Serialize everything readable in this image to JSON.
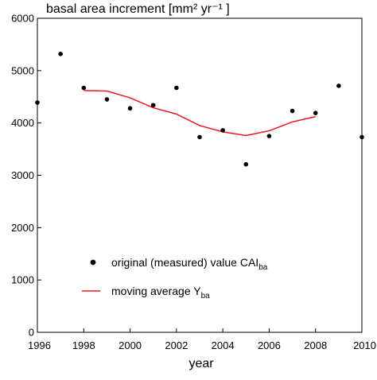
{
  "chart_data": {
    "type": "scatter",
    "title": "basal area increment [mm² yr⁻¹ ]",
    "xlabel": "year",
    "ylabel": "",
    "xlim": [
      1996,
      2010
    ],
    "ylim": [
      0,
      6000
    ],
    "xticks": [
      1996,
      1998,
      2000,
      2002,
      2004,
      2006,
      2008,
      2010
    ],
    "yticks": [
      0,
      1000,
      2000,
      3000,
      4000,
      5000,
      6000
    ],
    "grid": false,
    "legend_position": "lower-left",
    "series": [
      {
        "name": "original (measured) value CAI",
        "name_subscript": "ba",
        "kind": "points",
        "color": "#000000",
        "x": [
          1996,
          1997,
          1998,
          1999,
          2000,
          2001,
          2002,
          2003,
          2004,
          2005,
          2006,
          2007,
          2008,
          2009,
          2010
        ],
        "y": [
          4390,
          5320,
          4670,
          4450,
          4280,
          4340,
          4670,
          3730,
          3860,
          3210,
          3750,
          4230,
          4190,
          4710,
          3730
        ]
      },
      {
        "name": "moving average Y",
        "name_subscript": "ba",
        "kind": "line",
        "color": "#e8191f",
        "x": [
          1998,
          1999,
          2000,
          2001,
          2002,
          2003,
          2004,
          2005,
          2006,
          2007,
          2008
        ],
        "y": [
          4620,
          4610,
          4480,
          4290,
          4170,
          3950,
          3830,
          3760,
          3850,
          4020,
          4120
        ]
      }
    ]
  }
}
